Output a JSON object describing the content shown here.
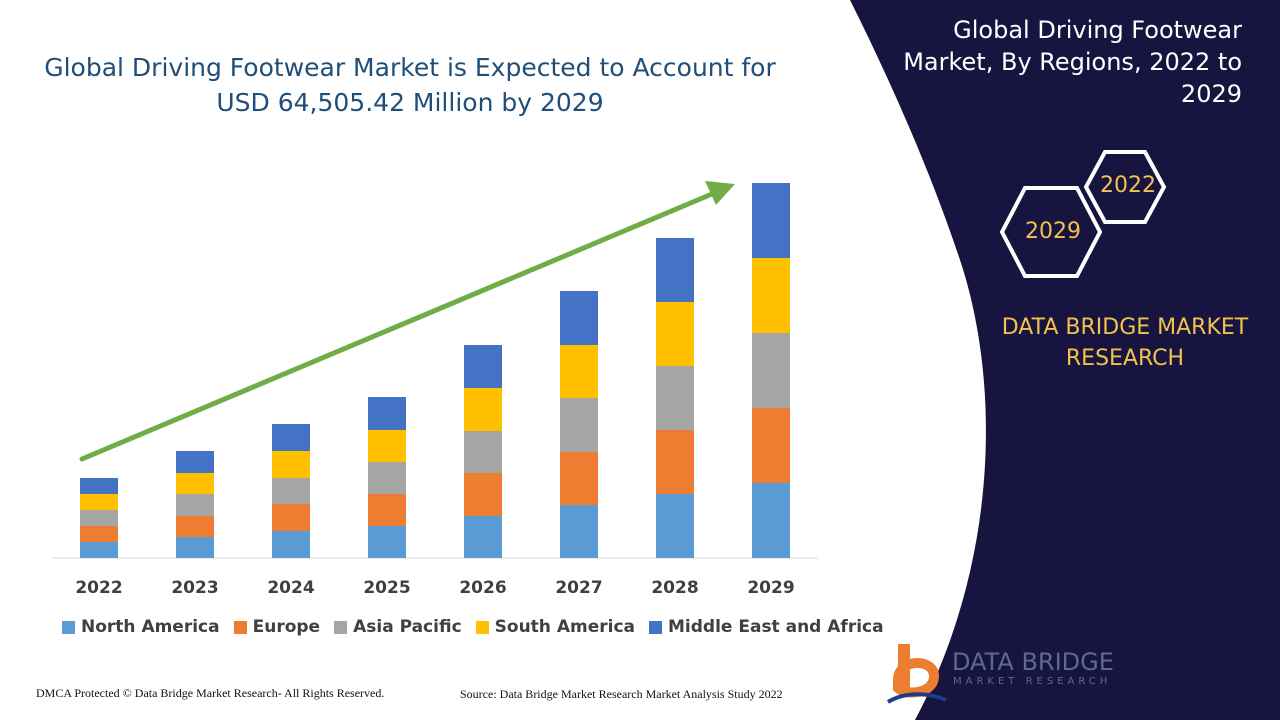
{
  "header": {
    "title": "Global Driving Footwear Market is Expected to Account for USD 64,505.42 Million by 2029"
  },
  "sidebar": {
    "title": "Global Driving Footwear Market, By Regions, 2022 to 2029",
    "hex_top": "2022",
    "hex_bottom": "2029",
    "brand": "DATA BRIDGE MARKET RESEARCH",
    "bg_color": "#171440",
    "accent_color": "#f2c14e"
  },
  "footer": {
    "left": "DMCA Protected © Data Bridge Market Research- All Rights Reserved.",
    "right": "Source: Data Bridge Market Research Market Analysis Study 2022"
  },
  "logo": {
    "line1": "DATA BRIDGE",
    "line2": "MARKET RESEARCH"
  },
  "chart_data": {
    "type": "bar",
    "stacked": true,
    "title": "Global Driving Footwear Market is Expected to Account for USD 64,505.42 Million by 2029",
    "categories": [
      "2022",
      "2023",
      "2024",
      "2025",
      "2026",
      "2027",
      "2028",
      "2029"
    ],
    "series": [
      {
        "name": "North America",
        "color": "#5b9bd5",
        "values": [
          16,
          21,
          27,
          32,
          42,
          53,
          64,
          75
        ]
      },
      {
        "name": "Europe",
        "color": "#ed7d31",
        "values": [
          16,
          21,
          27,
          32,
          43,
          53,
          64,
          75
        ]
      },
      {
        "name": "Asia Pacific",
        "color": "#a5a5a5",
        "values": [
          16,
          22,
          26,
          32,
          42,
          54,
          64,
          75
        ]
      },
      {
        "name": "South America",
        "color": "#ffc000",
        "values": [
          16,
          21,
          27,
          32,
          43,
          53,
          64,
          75
        ]
      },
      {
        "name": "Middle East and Africa",
        "color": "#4472c4",
        "values": [
          16,
          22,
          27,
          33,
          43,
          54,
          64,
          75
        ]
      }
    ],
    "legend": "bottom",
    "grid": false,
    "trend_arrow_color": "#70ad47"
  }
}
